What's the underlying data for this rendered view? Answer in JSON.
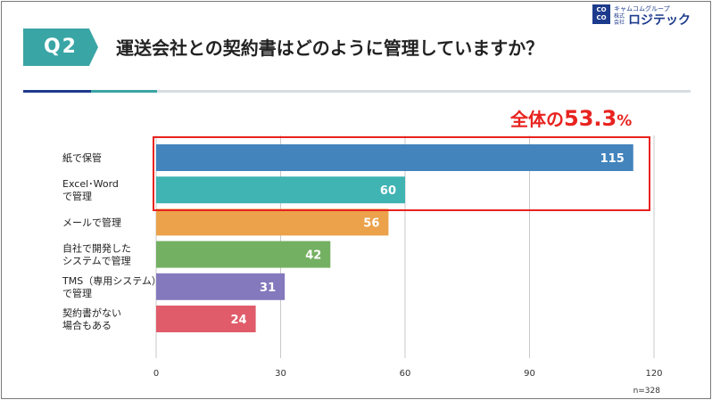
{
  "header": {
    "q_badge": "Q2",
    "title": "運送会社との契約書はどのように管理していますか？"
  },
  "logo": {
    "mark_line1": "CO",
    "mark_line2": "CO",
    "top_text": "キャムコムグループ",
    "small_text": "株式会社",
    "main_text": "ロジテック",
    "brand_color": "#1d3b8c"
  },
  "highlight": {
    "prefix": "全体の",
    "number": "53.3",
    "suffix": "%",
    "color": "#e8231f"
  },
  "chart_data": {
    "type": "bar",
    "orientation": "horizontal",
    "categories": [
      [
        "紙で保管"
      ],
      [
        "Excel･Word",
        "で管理"
      ],
      [
        "メールで管理"
      ],
      [
        "自社で開発した",
        "システムで管理"
      ],
      [
        "TMS（専用システム）",
        "で管理"
      ],
      [
        "契約書がない",
        "場合もある"
      ]
    ],
    "values": [
      115,
      60,
      56,
      42,
      31,
      24
    ],
    "colors": [
      "#4384bd",
      "#40b3b3",
      "#eba24b",
      "#74b062",
      "#8479bd",
      "#e05c6a"
    ],
    "xlim": [
      0,
      120
    ],
    "xticks": [
      0,
      30,
      60,
      90,
      120
    ],
    "grid": true,
    "sample_note": "n=328"
  }
}
